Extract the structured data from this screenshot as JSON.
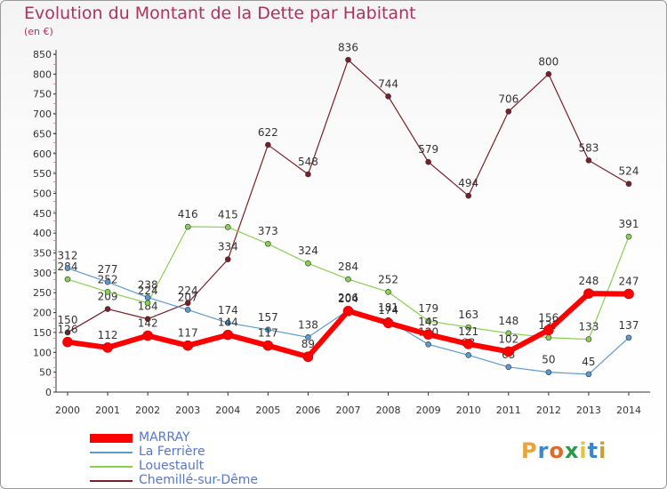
{
  "header": {
    "title": "Evolution du Montant de la Dette par Habitant",
    "unit": "(en €)"
  },
  "logo": {
    "text": "Proxiti",
    "colors": [
      "#e8a33a",
      "#3a88c8",
      "#e06a2a",
      "#2a9a4a",
      "#e8c23a",
      "#3a88c8",
      "#c8a030"
    ]
  },
  "chart_data": {
    "type": "line",
    "categories": [
      "2000",
      "2001",
      "2002",
      "2003",
      "2004",
      "2005",
      "2006",
      "2007",
      "2008",
      "2009",
      "2010",
      "2011",
      "2012",
      "2013",
      "2014"
    ],
    "ylim": [
      0,
      850
    ],
    "yticks": [
      0,
      50,
      100,
      150,
      200,
      250,
      300,
      350,
      400,
      450,
      500,
      550,
      600,
      650,
      700,
      750,
      800,
      850
    ],
    "grid": false,
    "legend_position": "bottom-left",
    "series": [
      {
        "name": "Chemillé-sur-Dême",
        "color": "#7a1f28",
        "width": 1.2,
        "values": [
          150,
          209,
          184,
          224,
          334,
          622,
          548,
          836,
          744,
          579,
          494,
          706,
          800,
          583,
          524
        ]
      },
      {
        "name": "Louestault",
        "color": "#88d050",
        "width": 1.2,
        "values": [
          284,
          252,
          224,
          416,
          415,
          373,
          324,
          284,
          252,
          179,
          163,
          148,
          137,
          133,
          391
        ]
      },
      {
        "name": "La Ferrière",
        "color": "#5a9ad0",
        "width": 1.2,
        "values": [
          312,
          277,
          238,
          207,
          174,
          157,
          138,
          206,
          181,
          120,
          93,
          63,
          50,
          45,
          137
        ]
      },
      {
        "name": "MARRAY",
        "color": "#ff0000",
        "width": 6,
        "values": [
          126,
          112,
          142,
          117,
          144,
          117,
          89,
          204,
          174,
          145,
          121,
          102,
          156,
          248,
          247
        ]
      }
    ]
  }
}
